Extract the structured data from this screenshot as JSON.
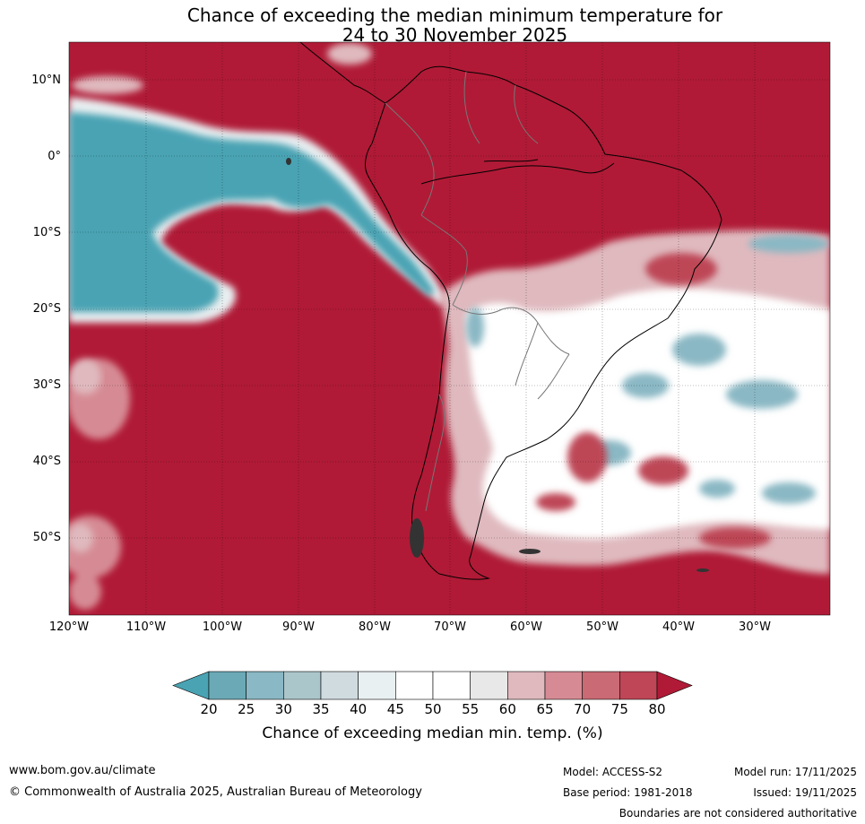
{
  "title": {
    "line1": "Chance of exceeding the median minimum temperature for",
    "line2": "24 to 30 November 2025"
  },
  "map": {
    "lat_labels": [
      "10°N",
      "0°",
      "10°S",
      "20°S",
      "30°S",
      "40°S",
      "50°S"
    ],
    "lon_labels": [
      "120°W",
      "110°W",
      "100°W",
      "90°W",
      "80°W",
      "70°W",
      "60°W",
      "50°W",
      "40°W",
      "30°W"
    ],
    "lat_range": [
      -60,
      15
    ],
    "lon_range": [
      -120,
      -20
    ],
    "gridlines": true
  },
  "colorbar": {
    "ticks": [
      "20",
      "25",
      "30",
      "35",
      "40",
      "45",
      "50",
      "55",
      "60",
      "65",
      "70",
      "75",
      "80"
    ],
    "colors": [
      "#4aa3b3",
      "#6ba9b6",
      "#8ab8c4",
      "#abc6cb",
      "#d0dbe0",
      "#e9f0f2",
      "#ffffff",
      "#ffffff",
      "#e8e8e8",
      "#dfb9be",
      "#d68b94",
      "#c96a74",
      "#be4656",
      "#b01a36"
    ],
    "label": "Chance of exceeding median min. temp. (%)"
  },
  "footer": {
    "website": "www.bom.gov.au/climate",
    "copyright": "© Commonwealth of Australia 2025, Australian Bureau of Meteorology",
    "model": "Model: ACCESS-S2",
    "base_period": "Base period: 1981-2018",
    "model_run": "Model run: 17/11/2025",
    "issued": "Issued: 19/11/2025",
    "disclaimer": "Boundaries are not considered authoritative"
  }
}
